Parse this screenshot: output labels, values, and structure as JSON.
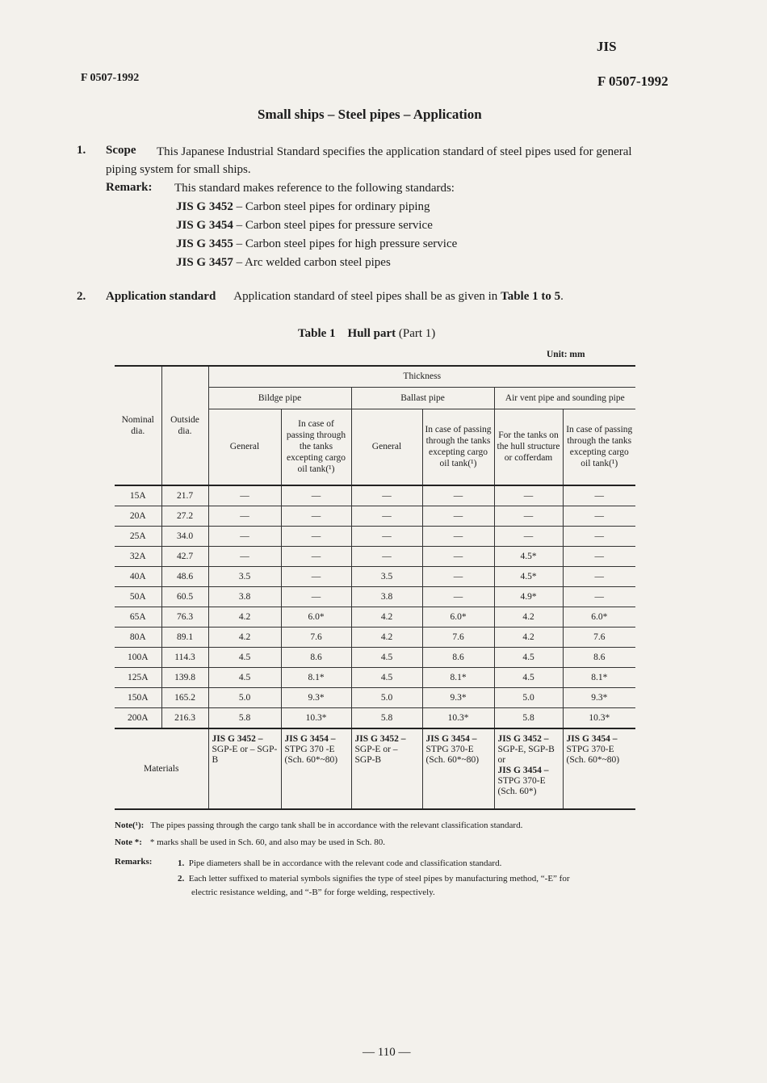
{
  "header": {
    "jis": "JIS",
    "code_left": "F 0507-1992",
    "code_right": "F 0507-1992"
  },
  "title": "Small ships – Steel pipes – Application",
  "scope": {
    "num": "1.",
    "heading": "Scope",
    "text1": "This Japanese Industrial Standard specifies the application standard of steel pipes used for general",
    "text2": "piping system for small ships.",
    "remark_label": "Remark:",
    "remark_text": "This standard makes reference to the following standards:",
    "refs": [
      {
        "code": "JIS G 3452",
        "desc": "– Carbon steel pipes for ordinary piping"
      },
      {
        "code": "JIS G 3454",
        "desc": "– Carbon steel pipes for pressure service"
      },
      {
        "code": "JIS G 3455",
        "desc": "– Carbon steel pipes for high pressure service"
      },
      {
        "code": "JIS G 3457",
        "desc": "– Arc welded carbon steel pipes"
      }
    ]
  },
  "application": {
    "num": "2.",
    "heading": "Application standard",
    "text_a": "Application standard of steel pipes shall be as given in ",
    "text_b": "Table 1 to 5",
    "text_c": "."
  },
  "table": {
    "caption_num": "Table 1",
    "caption_title": "Hull part",
    "caption_part": "(Part 1)",
    "unit": "Unit: mm",
    "headers": {
      "nominal": "Nominal dia.",
      "outside": "Outside dia.",
      "thickness": "Thickness",
      "bildge": "Bildge pipe",
      "ballast": "Ballast pipe",
      "airvent": "Air vent pipe and sounding pipe",
      "general": "General",
      "passing": "In case of passing through the tanks excepting cargo oil tank(¹)",
      "hull": "For the tanks on the hull structure or cofferdam"
    },
    "rows": [
      [
        "15A",
        "21.7",
        "—",
        "—",
        "—",
        "—",
        "—",
        "—"
      ],
      [
        "20A",
        "27.2",
        "—",
        "—",
        "—",
        "—",
        "—",
        "—"
      ],
      [
        "25A",
        "34.0",
        "—",
        "—",
        "—",
        "—",
        "—",
        "—"
      ],
      [
        "32A",
        "42.7",
        "—",
        "—",
        "—",
        "—",
        "4.5*",
        "—"
      ],
      [
        "40A",
        "48.6",
        "3.5",
        "—",
        "3.5",
        "—",
        "4.5*",
        "—"
      ],
      [
        "50A",
        "60.5",
        "3.8",
        "—",
        "3.8",
        "—",
        "4.9*",
        "—"
      ],
      [
        "65A",
        "76.3",
        "4.2",
        "6.0*",
        "4.2",
        "6.0*",
        "4.2",
        "6.0*"
      ],
      [
        "80A",
        "89.1",
        "4.2",
        "7.6",
        "4.2",
        "7.6",
        "4.2",
        "7.6"
      ],
      [
        "100A",
        "114.3",
        "4.5",
        "8.6",
        "4.5",
        "8.6",
        "4.5",
        "8.6"
      ],
      [
        "125A",
        "139.8",
        "4.5",
        "8.1*",
        "4.5",
        "8.1*",
        "4.5",
        "8.1*"
      ],
      [
        "150A",
        "165.2",
        "5.0",
        "9.3*",
        "5.0",
        "9.3*",
        "5.0",
        "9.3*"
      ],
      [
        "200A",
        "216.3",
        "5.8",
        "10.3*",
        "5.8",
        "10.3*",
        "5.8",
        "10.3*"
      ]
    ],
    "materials_label": "Materials",
    "materials": [
      {
        "bold": "JIS G 3452 –",
        "rest": "SGP-E or – SGP-B"
      },
      {
        "bold": "JIS G 3454 –",
        "rest": "STPG 370 -E (Sch. 60*~80)"
      },
      {
        "bold": "JIS G 3452 –",
        "rest": "SGP-E or – SGP-B"
      },
      {
        "bold": "JIS G 3454 –",
        "rest": "STPG 370-E (Sch. 60*~80)"
      },
      {
        "bold": "JIS G 3452 –",
        "rest": "SGP-E, SGP-B or",
        "bold2": "JIS G 3454 –",
        "rest2": "STPG 370-E (Sch. 60*)"
      },
      {
        "bold": "JIS G 3454 –",
        "rest": "STPG 370-E (Sch. 60*~80)"
      }
    ]
  },
  "notes": {
    "note1_label": "Note(¹):",
    "note1": "The pipes passing through the cargo tank shall be in accordance with the relevant classification standard.",
    "note2_label": "Note *:",
    "note2": "* marks shall be used in Sch. 60, and also may be used in Sch. 80.",
    "remarks_label": "Remarks:",
    "remarks": [
      {
        "num": "1.",
        "text": "Pipe diameters shall be in accordance with the relevant code and classification standard."
      },
      {
        "num": "2.",
        "text": "Each letter suffixed to material symbols signifies the type of steel pipes by manufacturing method, “-E” for",
        "text2": "electric resistance welding, and “-B” for forge welding, respectively."
      }
    ]
  },
  "footer": {
    "page": "— 110 —"
  }
}
